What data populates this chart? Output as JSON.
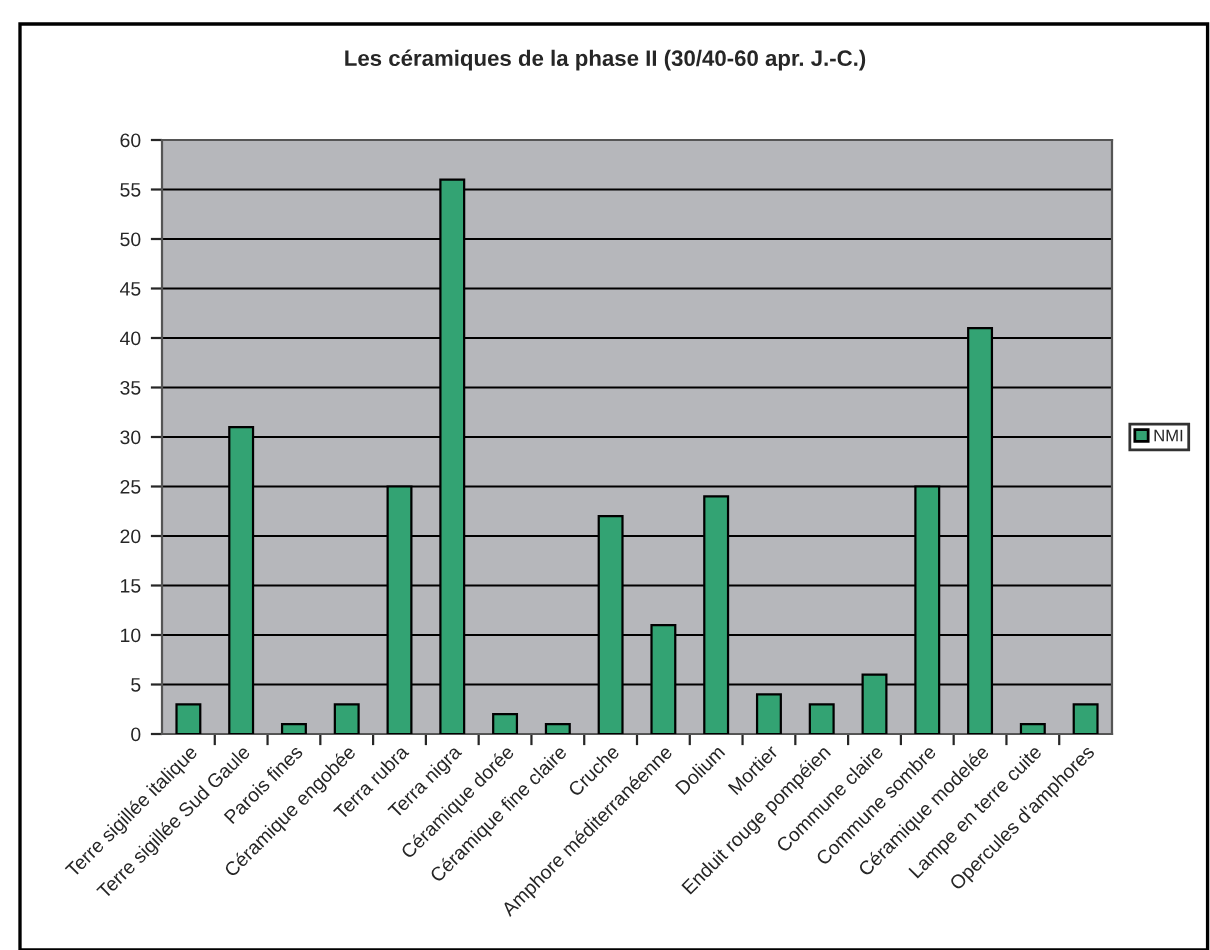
{
  "chart_data": {
    "type": "bar",
    "title": "Les céramiques de la phase II (30/40-60 apr. J.-C.)",
    "categories": [
      "Terre sigillée italique",
      "Terre sigillée Sud Gaule",
      "Parois fines",
      "Céramique engobée",
      "Terra rubra",
      "Terra nigra",
      "Céramique dorée",
      "Céramique fine claire",
      "Cruche",
      "Amphore méditerranéenne",
      "Dolium",
      "Mortier",
      "Enduit rouge pompéien",
      "Commune claire",
      "Commune sombre",
      "Céramique modelée",
      "Lampe en terre cuite",
      "Opercules d'amphores"
    ],
    "series": [
      {
        "name": "NMI",
        "color": "#33a373",
        "values": [
          3,
          31,
          1,
          3,
          25,
          56,
          2,
          1,
          22,
          11,
          24,
          4,
          3,
          6,
          25,
          41,
          1,
          3
        ]
      }
    ],
    "ylim": [
      0,
      60
    ],
    "yticks": [
      0,
      5,
      10,
      15,
      20,
      25,
      30,
      35,
      40,
      45,
      50,
      55,
      60
    ],
    "grid": "y",
    "legend": "right"
  }
}
